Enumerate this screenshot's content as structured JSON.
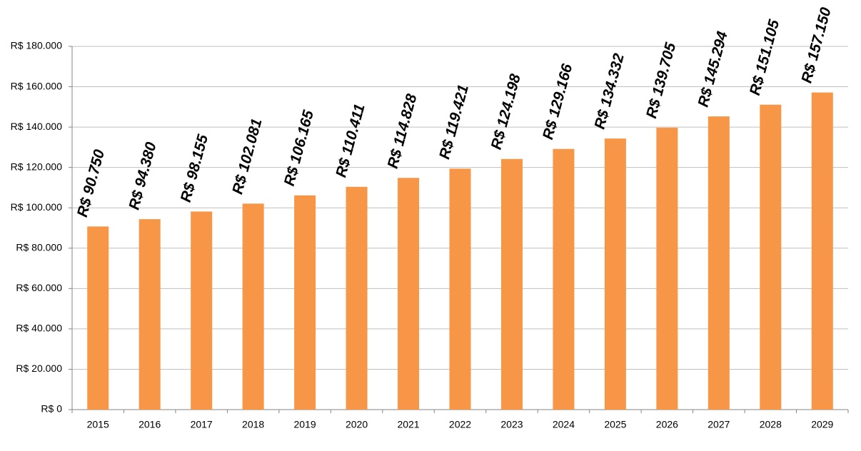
{
  "chart_data": {
    "type": "bar",
    "categories": [
      "2015",
      "2016",
      "2017",
      "2018",
      "2019",
      "2020",
      "2021",
      "2022",
      "2023",
      "2024",
      "2025",
      "2026",
      "2027",
      "2028",
      "2029"
    ],
    "values": [
      90750,
      94380,
      98155,
      102081,
      106165,
      110411,
      114828,
      119421,
      124198,
      129166,
      134332,
      139705,
      145294,
      151105,
      157150
    ],
    "value_labels": [
      "R$ 90.750",
      "R$ 94.380",
      "R$ 98.155",
      "R$ 102.081",
      "R$ 106.165",
      "R$ 110.411",
      "R$ 114.828",
      "R$ 119.421",
      "R$ 124.198",
      "R$ 129.166",
      "R$ 134.332",
      "R$ 139.705",
      "R$ 145.294",
      "R$ 151.105",
      "R$ 157.150"
    ],
    "color": "#f79646",
    "ylim": [
      0,
      180000
    ],
    "yticks": [
      {
        "value": 0,
        "label": "R$ 0"
      },
      {
        "value": 20000,
        "label": "R$ 20.000"
      },
      {
        "value": 40000,
        "label": "R$ 40.000"
      },
      {
        "value": 60000,
        "label": "R$ 60.000"
      },
      {
        "value": 80000,
        "label": "R$ 80.000"
      },
      {
        "value": 100000,
        "label": "R$ 100.000"
      },
      {
        "value": 120000,
        "label": "R$ 120.000"
      },
      {
        "value": 140000,
        "label": "R$ 140.000"
      },
      {
        "value": 160000,
        "label": "R$ 160.000"
      },
      {
        "value": 180000,
        "label": "R$ 180.000"
      }
    ],
    "grid": true
  }
}
